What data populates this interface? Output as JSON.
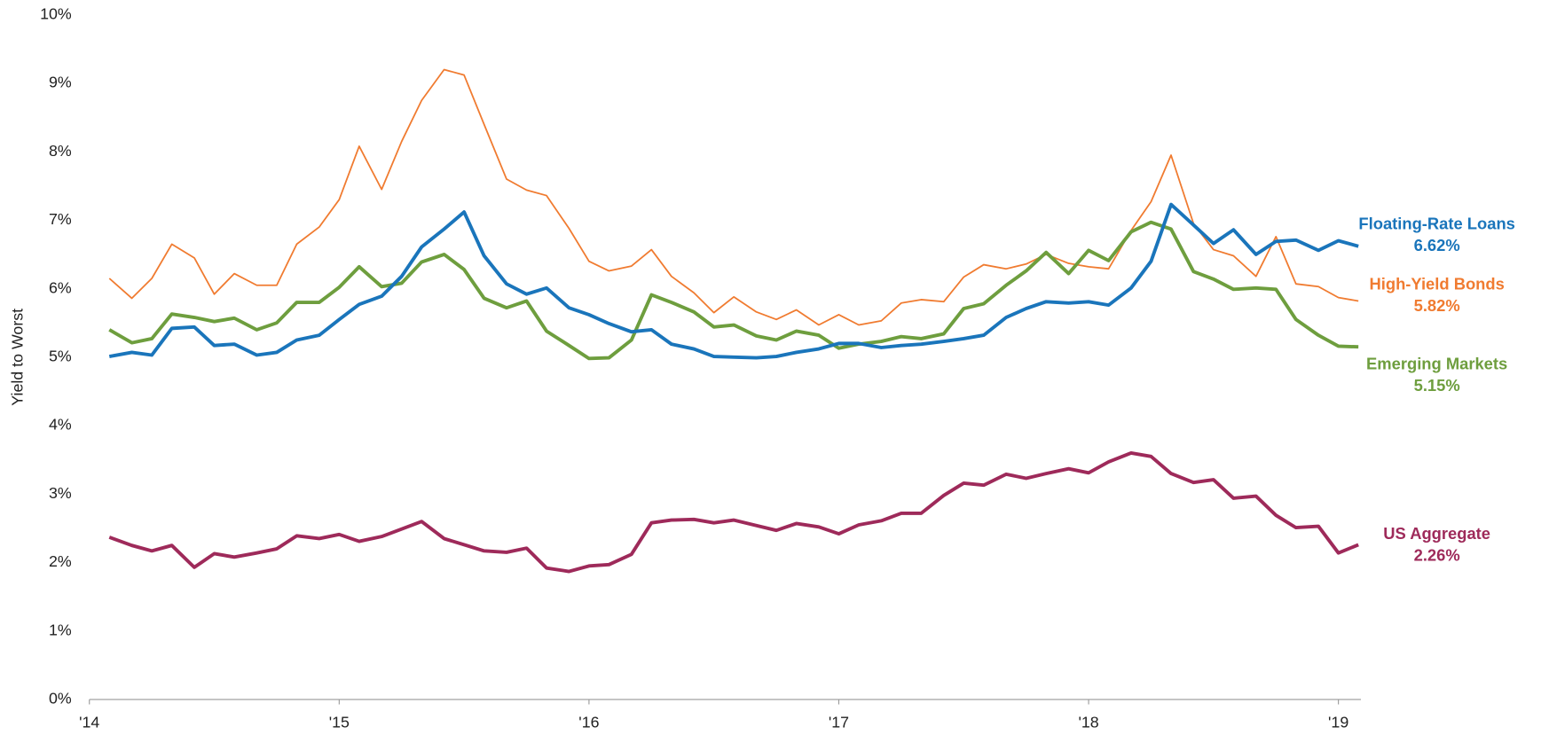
{
  "chart_data": {
    "type": "line",
    "y_label": "Yield to Worst",
    "xlim": [
      2014,
      2019.09
    ],
    "xticks": [
      {
        "value": 2014,
        "label": "'14"
      },
      {
        "value": 2015,
        "label": "'15"
      },
      {
        "value": 2016,
        "label": "'16"
      },
      {
        "value": 2017,
        "label": "'17"
      },
      {
        "value": 2018,
        "label": "'18"
      },
      {
        "value": 2019,
        "label": "'19"
      }
    ],
    "ylim": [
      0,
      10
    ],
    "yticks": [
      {
        "value": 0,
        "label": "0%"
      },
      {
        "value": 1,
        "label": "1%"
      },
      {
        "value": 2,
        "label": "2%"
      },
      {
        "value": 3,
        "label": "3%"
      },
      {
        "value": 4,
        "label": "4%"
      },
      {
        "value": 5,
        "label": "5%"
      },
      {
        "value": 6,
        "label": "6%"
      },
      {
        "value": 7,
        "label": "7%"
      },
      {
        "value": 8,
        "label": "8%"
      },
      {
        "value": 9,
        "label": "9%"
      },
      {
        "value": 10,
        "label": "10%"
      }
    ],
    "grid": false,
    "x": [
      2014.08,
      2014.17,
      2014.25,
      2014.33,
      2014.42,
      2014.5,
      2014.58,
      2014.67,
      2014.75,
      2014.83,
      2014.92,
      2015,
      2015.08,
      2015.17,
      2015.25,
      2015.33,
      2015.42,
      2015.5,
      2015.58,
      2015.67,
      2015.75,
      2015.83,
      2015.92,
      2016,
      2016.08,
      2016.17,
      2016.25,
      2016.33,
      2016.42,
      2016.5,
      2016.58,
      2016.67,
      2016.75,
      2016.83,
      2016.92,
      2017,
      2017.08,
      2017.17,
      2017.25,
      2017.33,
      2017.42,
      2017.5,
      2017.58,
      2017.67,
      2017.75,
      2017.83,
      2017.92,
      2018,
      2018.08,
      2018.17,
      2018.25,
      2018.33,
      2018.42,
      2018.5,
      2018.58,
      2018.67,
      2018.75,
      2018.83,
      2018.92,
      2019,
      2019.08
    ],
    "series": [
      {
        "name": "Floating-Rate Loans",
        "color": "#1a75bb",
        "line_width": 3.5,
        "values": [
          5.01,
          5.07,
          5.03,
          5.42,
          5.44,
          5.17,
          5.19,
          5.03,
          5.07,
          5.25,
          5.32,
          5.55,
          5.77,
          5.89,
          6.18,
          6.61,
          6.87,
          7.12,
          6.48,
          6.07,
          5.92,
          6.01,
          5.72,
          5.62,
          5.49,
          5.37,
          5.4,
          5.19,
          5.12,
          5.01,
          5.0,
          4.99,
          5.01,
          5.07,
          5.12,
          5.2,
          5.2,
          5.14,
          5.17,
          5.19,
          5.23,
          5.27,
          5.32,
          5.58,
          5.71,
          5.81,
          5.79,
          5.81,
          5.76,
          6.01,
          6.4,
          7.23,
          6.93,
          6.66,
          6.86,
          6.5,
          6.69,
          6.71,
          6.56,
          6.7,
          6.62
        ],
        "value_labels": [
          null,
          null,
          null,
          null,
          null,
          null,
          null,
          null,
          null,
          null,
          null,
          null,
          null,
          null,
          null,
          null,
          null,
          null,
          null,
          null,
          null,
          null,
          null,
          null,
          null,
          null,
          null,
          null,
          null,
          null,
          null,
          null,
          null,
          null,
          null,
          null,
          null,
          null,
          null,
          null,
          null,
          null,
          null,
          null,
          null,
          null,
          null,
          null,
          null,
          null,
          null,
          null,
          null,
          null,
          null,
          null,
          null,
          null,
          null,
          null,
          "6.62%"
        ]
      },
      {
        "name": "High-Yield Bonds",
        "color": "#f07b30",
        "line_width": 1.6,
        "values": [
          6.15,
          5.86,
          6.15,
          6.65,
          6.45,
          5.92,
          6.22,
          6.05,
          6.05,
          6.65,
          6.9,
          7.3,
          8.08,
          7.45,
          8.15,
          8.75,
          9.2,
          9.12,
          8.4,
          7.6,
          7.44,
          7.36,
          6.88,
          6.4,
          6.26,
          6.33,
          6.57,
          6.18,
          5.94,
          5.65,
          5.88,
          5.66,
          5.55,
          5.69,
          5.47,
          5.62,
          5.47,
          5.53,
          5.79,
          5.84,
          5.81,
          6.17,
          6.35,
          6.29,
          6.36,
          6.5,
          6.37,
          6.32,
          6.29,
          6.85,
          7.27,
          7.95,
          6.95,
          6.57,
          6.48,
          6.18,
          6.76,
          6.07,
          6.03,
          5.87,
          5.82
        ],
        "value_labels": [
          null,
          null,
          null,
          null,
          null,
          null,
          null,
          null,
          null,
          null,
          null,
          null,
          null,
          null,
          null,
          null,
          null,
          null,
          null,
          null,
          null,
          null,
          null,
          null,
          null,
          null,
          null,
          null,
          null,
          null,
          null,
          null,
          null,
          null,
          null,
          null,
          null,
          null,
          null,
          null,
          null,
          null,
          null,
          null,
          null,
          null,
          null,
          null,
          null,
          null,
          null,
          null,
          null,
          null,
          null,
          null,
          null,
          null,
          null,
          null,
          "5.82%"
        ]
      },
      {
        "name": "Emerging Markets",
        "color": "#6e9e3e",
        "line_width": 3.5,
        "values": [
          5.4,
          5.21,
          5.27,
          5.63,
          5.58,
          5.52,
          5.57,
          5.4,
          5.5,
          5.8,
          5.8,
          6.02,
          6.32,
          6.03,
          6.08,
          6.39,
          6.5,
          6.28,
          5.86,
          5.72,
          5.82,
          5.38,
          5.17,
          4.98,
          4.99,
          5.25,
          5.91,
          5.8,
          5.66,
          5.44,
          5.47,
          5.31,
          5.25,
          5.38,
          5.32,
          5.13,
          5.19,
          5.23,
          5.3,
          5.27,
          5.34,
          5.71,
          5.78,
          6.05,
          6.26,
          6.53,
          6.22,
          6.56,
          6.41,
          6.83,
          6.97,
          6.87,
          6.25,
          6.14,
          5.99,
          6.01,
          5.99,
          5.55,
          5.32,
          5.16,
          5.15
        ],
        "value_labels": [
          null,
          null,
          null,
          null,
          null,
          null,
          null,
          null,
          null,
          null,
          null,
          null,
          null,
          null,
          null,
          null,
          null,
          null,
          null,
          null,
          null,
          null,
          null,
          null,
          null,
          null,
          null,
          null,
          null,
          null,
          null,
          null,
          null,
          null,
          null,
          null,
          null,
          null,
          null,
          null,
          null,
          null,
          null,
          null,
          null,
          null,
          null,
          null,
          null,
          null,
          null,
          null,
          null,
          null,
          null,
          null,
          null,
          null,
          null,
          null,
          "5.15%"
        ]
      },
      {
        "name": "US Aggregate",
        "color": "#9e2a5a",
        "line_width": 3.5,
        "values": [
          2.37,
          2.25,
          2.17,
          2.25,
          1.93,
          2.13,
          2.08,
          2.14,
          2.2,
          2.39,
          2.35,
          2.41,
          2.31,
          2.38,
          2.49,
          2.6,
          2.35,
          2.26,
          2.17,
          2.15,
          2.21,
          1.92,
          1.87,
          1.95,
          1.97,
          2.12,
          2.58,
          2.62,
          2.63,
          2.58,
          2.62,
          2.54,
          2.47,
          2.57,
          2.52,
          2.42,
          2.55,
          2.61,
          2.72,
          2.72,
          2.98,
          3.16,
          3.13,
          3.29,
          3.23,
          3.3,
          3.37,
          3.31,
          3.47,
          3.6,
          3.55,
          3.3,
          3.17,
          3.21,
          2.94,
          2.97,
          2.69,
          2.51,
          2.53,
          2.14,
          2.26
        ],
        "value_labels": [
          null,
          null,
          null,
          null,
          null,
          null,
          null,
          null,
          null,
          null,
          null,
          null,
          null,
          null,
          null,
          null,
          null,
          null,
          null,
          null,
          null,
          null,
          null,
          null,
          null,
          null,
          null,
          null,
          null,
          null,
          null,
          null,
          null,
          null,
          null,
          null,
          null,
          null,
          null,
          null,
          null,
          null,
          null,
          null,
          null,
          null,
          null,
          null,
          null,
          null,
          null,
          null,
          null,
          null,
          null,
          null,
          null,
          null,
          null,
          null,
          "2.26%"
        ]
      }
    ]
  }
}
